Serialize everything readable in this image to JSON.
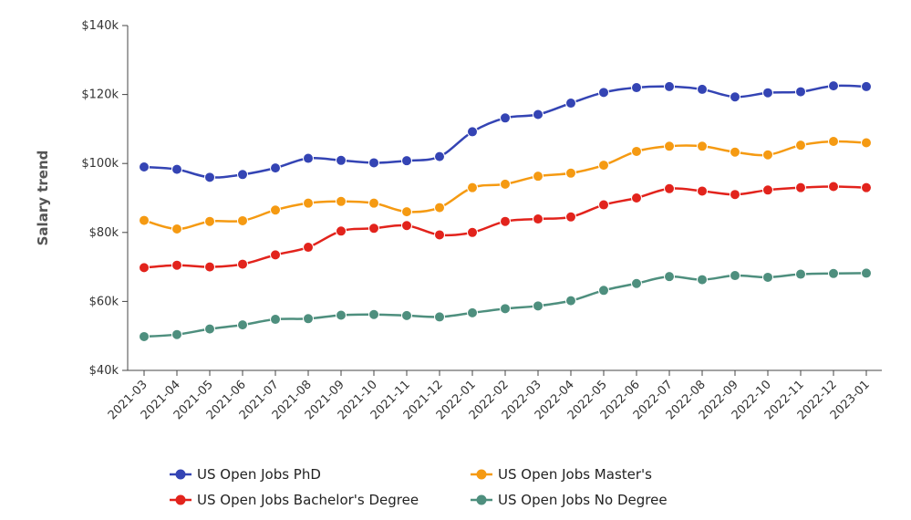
{
  "chart_data": {
    "type": "line",
    "ylabel": "Salary trend",
    "xlabel": "",
    "ylim": [
      40000,
      140000
    ],
    "yticks": [
      {
        "value": 40000,
        "label": "$40k"
      },
      {
        "value": 60000,
        "label": "$60k"
      },
      {
        "value": 80000,
        "label": "$80k"
      },
      {
        "value": 100000,
        "label": "$100k"
      },
      {
        "value": 120000,
        "label": "$120k"
      },
      {
        "value": 140000,
        "label": "$140k"
      }
    ],
    "categories": [
      "2021-03",
      "2021-04",
      "2021-05",
      "2021-06",
      "2021-07",
      "2021-08",
      "2021-09",
      "2021-10",
      "2021-11",
      "2021-12",
      "2022-01",
      "2022-02",
      "2022-03",
      "2022-04",
      "2022-05",
      "2022-06",
      "2022-07",
      "2022-08",
      "2022-09",
      "2022-10",
      "2022-11",
      "2022-12",
      "2023-01"
    ],
    "series": [
      {
        "name": "US Open Jobs PhD",
        "color": "#3444b4",
        "values": [
          99000,
          98300,
          96000,
          96800,
          98700,
          101500,
          100900,
          100200,
          100800,
          102000,
          109200,
          113200,
          114200,
          117500,
          120600,
          122000,
          122300,
          121500,
          119300,
          120500,
          120800,
          122500,
          122300
        ]
      },
      {
        "name": "US Open Jobs Master's",
        "color": "#f59a12",
        "values": [
          83500,
          81000,
          83200,
          83400,
          86500,
          88500,
          89000,
          88500,
          86000,
          87200,
          93000,
          94000,
          96300,
          97200,
          99500,
          103500,
          105000,
          105000,
          103300,
          102500,
          105300,
          106400,
          106000
        ]
      },
      {
        "name": "US Open Jobs Bachelor's Degree",
        "color": "#e2231c",
        "values": [
          69800,
          70500,
          70000,
          70800,
          73500,
          75700,
          80400,
          81200,
          82000,
          79300,
          80000,
          83200,
          83900,
          84500,
          88000,
          90000,
          92700,
          92000,
          91000,
          92300,
          93000,
          93300,
          93000
        ]
      },
      {
        "name": "US Open Jobs No Degree",
        "color": "#4e8f7e",
        "values": [
          49800,
          50400,
          52000,
          53200,
          54800,
          55000,
          56000,
          56200,
          55900,
          55500,
          56700,
          57900,
          58700,
          60200,
          63200,
          65200,
          67200,
          66300,
          67500,
          67000,
          67900,
          68100,
          68200
        ]
      }
    ],
    "legend": "bottom",
    "grid": false
  }
}
